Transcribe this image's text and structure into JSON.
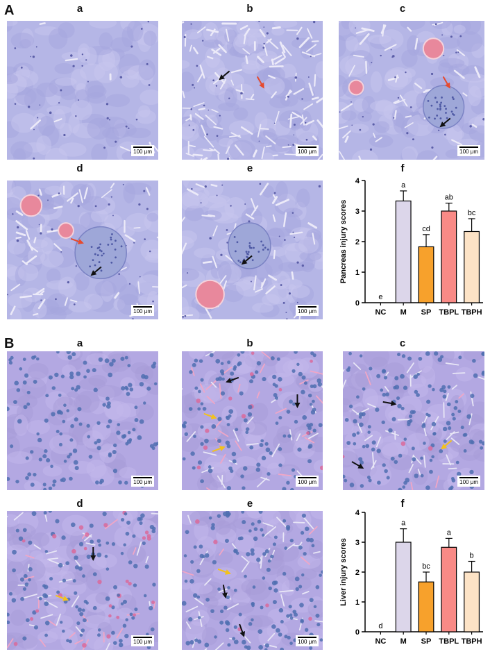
{
  "sections": [
    {
      "label": "A",
      "panels": [
        {
          "label": "a",
          "tissue": "pancreas",
          "scale": "100 μm"
        },
        {
          "label": "b",
          "tissue": "pancreas",
          "scale": "100 μm"
        },
        {
          "label": "c",
          "tissue": "pancreas",
          "scale": "100 μm"
        },
        {
          "label": "d",
          "tissue": "pancreas",
          "scale": "100 μm"
        },
        {
          "label": "e",
          "tissue": "pancreas",
          "scale": "100 μm"
        }
      ],
      "chart_label": "f"
    },
    {
      "label": "B",
      "panels": [
        {
          "label": "a",
          "tissue": "liver",
          "scale": "100 μm"
        },
        {
          "label": "b",
          "tissue": "liver",
          "scale": "100 μm"
        },
        {
          "label": "c",
          "tissue": "liver",
          "scale": "100 μm"
        },
        {
          "label": "d",
          "tissue": "liver",
          "scale": "100 μm"
        },
        {
          "label": "e",
          "tissue": "liver",
          "scale": "100 μm"
        }
      ],
      "chart_label": "f"
    }
  ],
  "chart_data": [
    {
      "type": "bar",
      "categories": [
        "NC",
        "M",
        "SP",
        "TBPL",
        "TBPH"
      ],
      "values": [
        0,
        3.33,
        1.83,
        3.0,
        2.33
      ],
      "errors": [
        0,
        0.33,
        0.4,
        0.26,
        0.42
      ],
      "letters": [
        "e",
        "a",
        "cd",
        "ab",
        "bc"
      ],
      "colors": [
        "#ffffff",
        "#dcd6ea",
        "#f7a12c",
        "#f98a86",
        "#fde3c6"
      ],
      "ylabel": "Pancreas injury scores",
      "ylim": [
        0,
        4
      ],
      "yticks": [
        "0",
        "1",
        "2",
        "3",
        "4"
      ]
    },
    {
      "type": "bar",
      "categories": [
        "NC",
        "M",
        "SP",
        "TBPL",
        "TBPH"
      ],
      "values": [
        0,
        3.0,
        1.67,
        2.83,
        2.0
      ],
      "errors": [
        0,
        0.45,
        0.33,
        0.3,
        0.36
      ],
      "letters": [
        "d",
        "a",
        "bc",
        "a",
        "b"
      ],
      "colors": [
        "#ffffff",
        "#dcd6ea",
        "#f7a12c",
        "#f98a86",
        "#fde3c6"
      ],
      "ylabel": "Liver injury scores",
      "ylim": [
        0,
        4
      ],
      "yticks": [
        "0",
        "1",
        "2",
        "3",
        "4"
      ]
    }
  ]
}
